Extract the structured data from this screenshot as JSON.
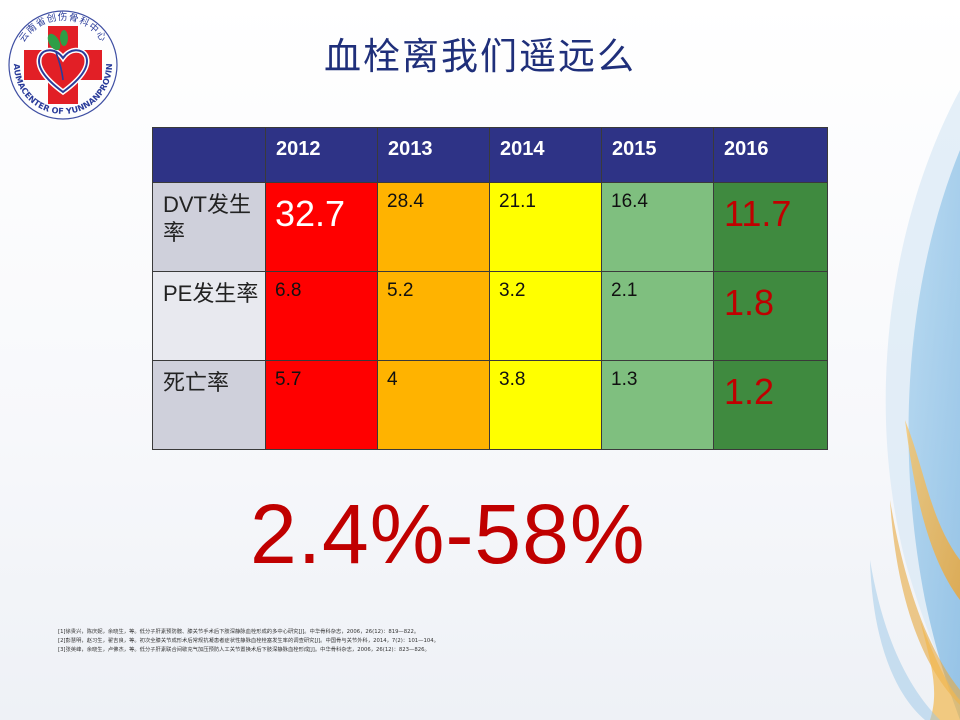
{
  "title": "血栓离我们遥远么",
  "logo": {
    "top_text": "云南省创伤骨科中心",
    "ring_text": "TRAUMACENTER OF YUNNANPROVINCE"
  },
  "table": {
    "years": [
      "2012",
      "2013",
      "2014",
      "2015",
      "2016"
    ],
    "rows": [
      {
        "label": "DVT发生率",
        "values": [
          "32.7",
          "28.4",
          "21.1",
          "16.4",
          "11.7"
        ]
      },
      {
        "label": "PE发生率",
        "values": [
          "6.8",
          "5.2",
          "3.2",
          "2.1",
          "1.8"
        ]
      },
      {
        "label": "死亡率",
        "values": [
          "5.7",
          "4",
          "3.8",
          "1.3",
          "1.2"
        ]
      }
    ]
  },
  "range_text": "2.4%-58%",
  "references": [
    "[1]徐贵兴，陈庆妮，余晓生，等。低分子肝素预防髋、膝关节手术后下肢深静脉血栓形成的多中心研究[J]。中华骨科杂志，2006，26(12)：819—822。",
    "[2]彭慧明，赵习生，翟吉良，等。初次全膝关节成形术后常规抗凝患者症状性静脉血栓栓塞发生率的调查研究[J]。中国骨与关节外科，2014，7(2)：101—104。",
    "[3]张英峰，余晓生，卢佛杰，等。低分子肝素联合间歇充气加压预防人工关节置换术后下肢深静脉血栓形成[J]。中华骨科杂志，2006，26(12)：823—826。"
  ],
  "colors": {
    "title": "#1f2f7a",
    "header_bg": "#2e3386",
    "col_2012": "#ff0000",
    "col_2013": "#ffb300",
    "col_2014": "#ffff00",
    "col_2015": "#7fbf7f",
    "col_2016": "#3f8a3f",
    "accent_red": "#c00000"
  }
}
